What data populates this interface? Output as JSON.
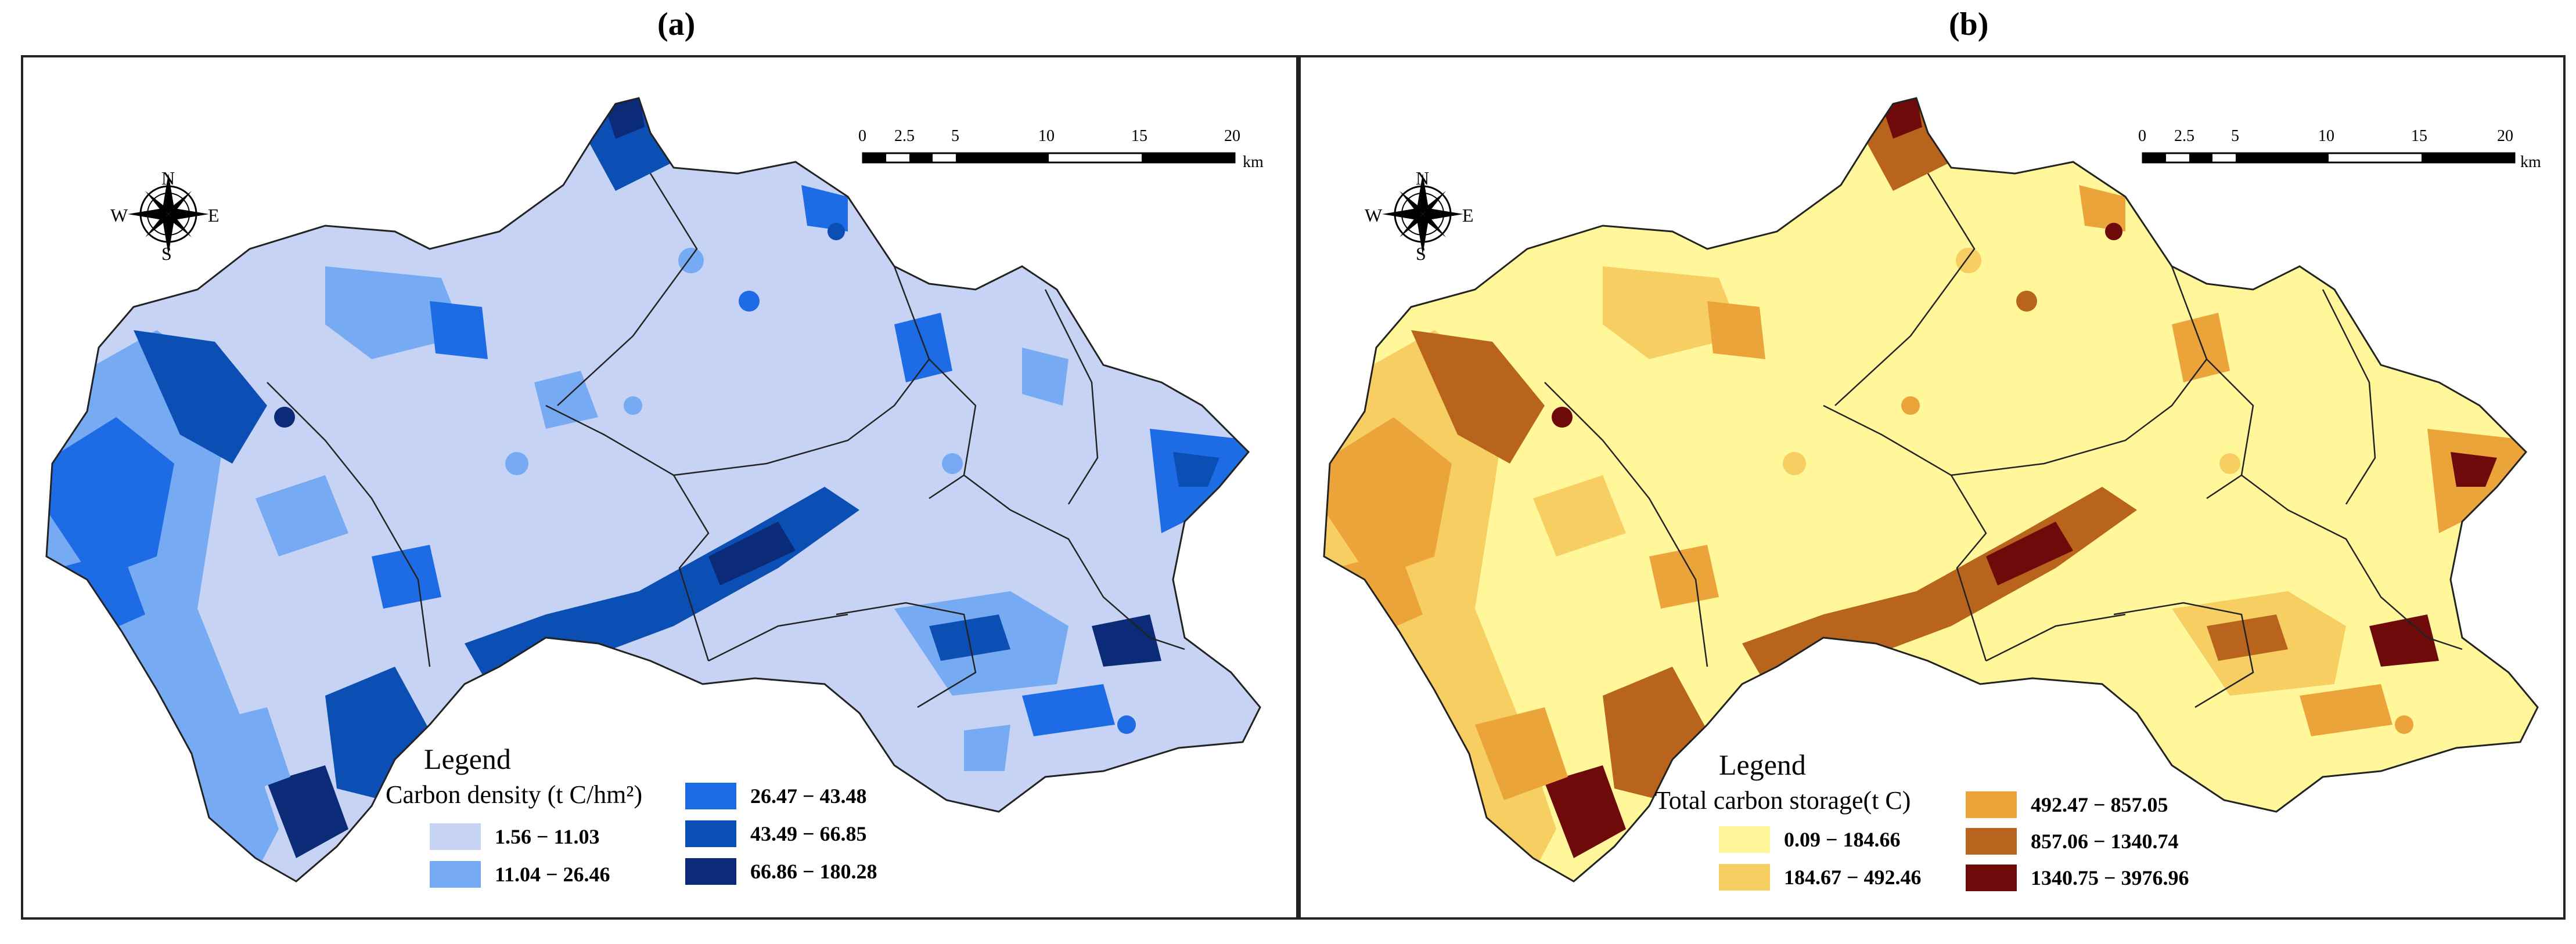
{
  "panels": [
    {
      "id": "a",
      "label": "(a)",
      "compass": {
        "n": "N",
        "s": "S",
        "e": "E",
        "w": "W"
      },
      "scale": {
        "ticks": [
          "0",
          "2.5",
          "5",
          "10",
          "15",
          "20"
        ],
        "unit": "km"
      },
      "legend": {
        "title": "Legend",
        "subtitle": "Carbon density (t C/hm²)",
        "classes": [
          {
            "label": "1.56 − 11.03",
            "color": "#c7d3f5"
          },
          {
            "label": "11.04 − 26.46",
            "color": "#76aaf2"
          },
          {
            "label": "26.47 − 43.48",
            "color": "#1d6ce6"
          },
          {
            "label": "43.49 − 66.85",
            "color": "#0b4fb5"
          },
          {
            "label": "66.86 − 180.28",
            "color": "#0b2a78"
          }
        ]
      }
    },
    {
      "id": "b",
      "label": "(b)",
      "compass": {
        "n": "N",
        "s": "S",
        "e": "E",
        "w": "W"
      },
      "scale": {
        "ticks": [
          "0",
          "2.5",
          "5",
          "10",
          "15",
          "20"
        ],
        "unit": "km"
      },
      "legend": {
        "title": "Legend",
        "subtitle": "Total carbon storage(t C)",
        "classes": [
          {
            "label": "0.09 − 184.66",
            "color": "#fff79a"
          },
          {
            "label": "184.67 − 492.46",
            "color": "#f7ce62"
          },
          {
            "label": "492.47 − 857.05",
            "color": "#eba43a"
          },
          {
            "label": "857.06 − 1340.74",
            "color": "#b8641d"
          },
          {
            "label": "1340.75 − 3976.96",
            "color": "#6f0a0a"
          }
        ]
      }
    }
  ]
}
